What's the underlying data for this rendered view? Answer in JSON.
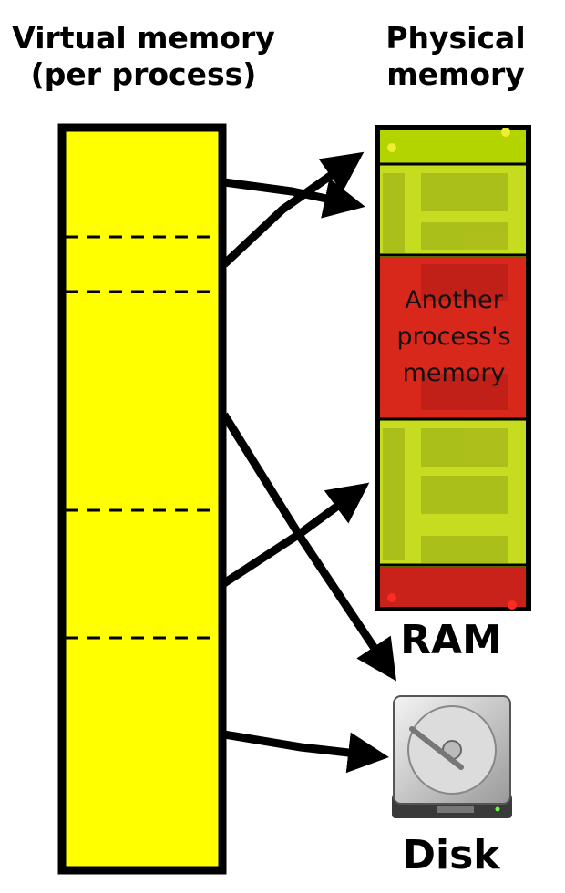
{
  "virtual_memory": {
    "title_line1": "Virtual memory",
    "title_line2": "(per process)"
  },
  "physical_memory": {
    "title_line1": "Physical",
    "title_line2": "memory"
  },
  "ram": {
    "label": "RAM",
    "other_process_lines": [
      "Another",
      "process's",
      "memory"
    ]
  },
  "disk": {
    "label": "Disk"
  },
  "colors": {
    "virtual_block": "#ffff00",
    "ram_free": "#b4d400",
    "ram_other": "#d8281c",
    "border": "#000000"
  }
}
